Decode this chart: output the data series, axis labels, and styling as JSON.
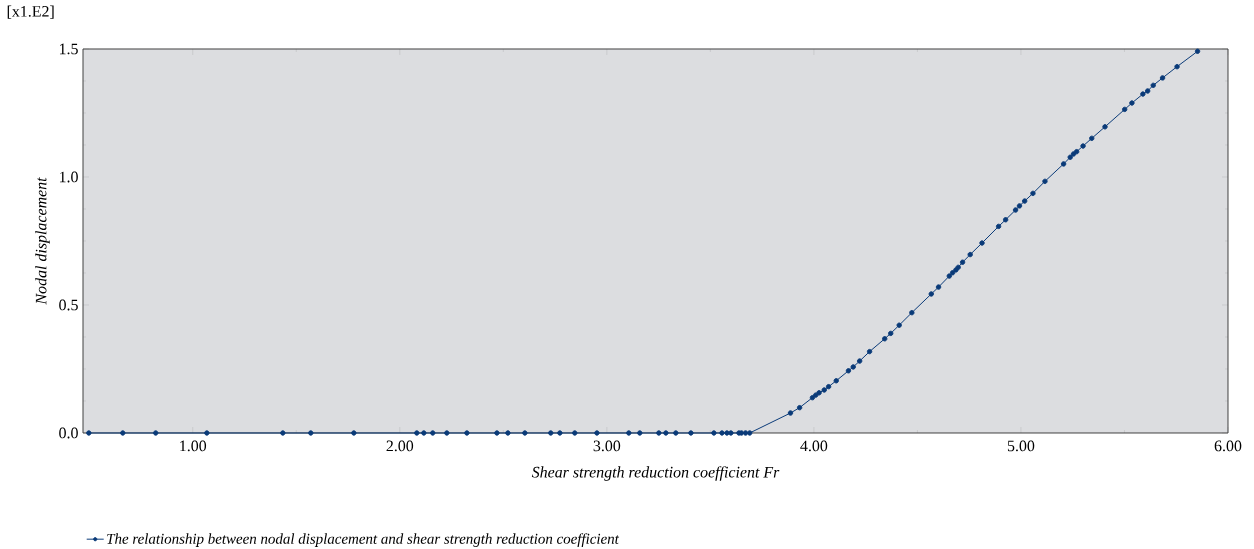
{
  "chart_data": {
    "type": "line",
    "xlabel": "Shear strength reduction coefficient Fr",
    "ylabel": "Nodal displacement",
    "annotations": [
      "[x1.E2]"
    ],
    "xlim": [
      0.47,
      6.0
    ],
    "ylim": [
      0,
      1.5
    ],
    "xticks": [
      {
        "value": 1,
        "label": "1.00"
      },
      {
        "value": 2,
        "label": "2.00"
      },
      {
        "value": 3,
        "label": "3.00"
      },
      {
        "value": 4,
        "label": "4.00"
      },
      {
        "value": 5,
        "label": "5.00"
      },
      {
        "value": 6,
        "label": "6.00"
      }
    ],
    "yticks": [
      {
        "value": 0,
        "label": "0.0"
      },
      0.5,
      {
        "value": 1,
        "label": "1.0"
      },
      1.5
    ],
    "marker": "circle",
    "line_style": "solid",
    "grid": false,
    "legend": "bottom left",
    "series": [
      {
        "name": "The relationship between nodal displacement and shear strength reduction coefficient",
        "color": "#0a3a78",
        "x": [
          0.498,
          0.662,
          0.821,
          1.068,
          1.435,
          1.57,
          1.778,
          2.082,
          2.116,
          2.159,
          2.227,
          2.324,
          2.469,
          2.522,
          2.604,
          2.729,
          2.773,
          2.845,
          2.952,
          3.106,
          3.159,
          3.251,
          3.285,
          3.333,
          3.406,
          3.517,
          3.556,
          3.58,
          3.599,
          3.638,
          3.65,
          3.67,
          3.69,
          3.887,
          3.931,
          3.993,
          4.009,
          4.025,
          4.05,
          4.071,
          4.108,
          4.167,
          4.19,
          4.221,
          4.269,
          4.342,
          4.371,
          4.412,
          4.473,
          4.567,
          4.602,
          4.654,
          4.67,
          4.686,
          4.697,
          4.718,
          4.755,
          4.812,
          4.892,
          4.926,
          4.974,
          4.993,
          5.018,
          5.058,
          5.116,
          5.206,
          5.238,
          5.254,
          5.269,
          5.3,
          5.342,
          5.406,
          5.501,
          5.536,
          5.589,
          5.612,
          5.639,
          5.684,
          5.754,
          5.853
        ],
        "values": [
          0,
          0,
          0,
          0,
          0,
          0,
          0,
          0,
          0,
          0,
          0,
          0,
          0,
          0,
          0,
          0,
          0,
          0,
          0,
          0,
          0,
          0,
          0,
          0,
          0,
          0,
          0,
          0,
          0,
          0,
          0,
          0,
          0,
          0.078,
          0.099,
          0.138,
          0.148,
          0.157,
          0.168,
          0.181,
          0.204,
          0.243,
          0.258,
          0.281,
          0.318,
          0.368,
          0.389,
          0.421,
          0.47,
          0.543,
          0.57,
          0.613,
          0.626,
          0.637,
          0.647,
          0.667,
          0.697,
          0.742,
          0.807,
          0.833,
          0.871,
          0.887,
          0.906,
          0.936,
          0.983,
          1.051,
          1.077,
          1.09,
          1.099,
          1.121,
          1.151,
          1.196,
          1.264,
          1.289,
          1.324,
          1.336,
          1.358,
          1.387,
          1.431,
          1.491
        ]
      }
    ]
  }
}
